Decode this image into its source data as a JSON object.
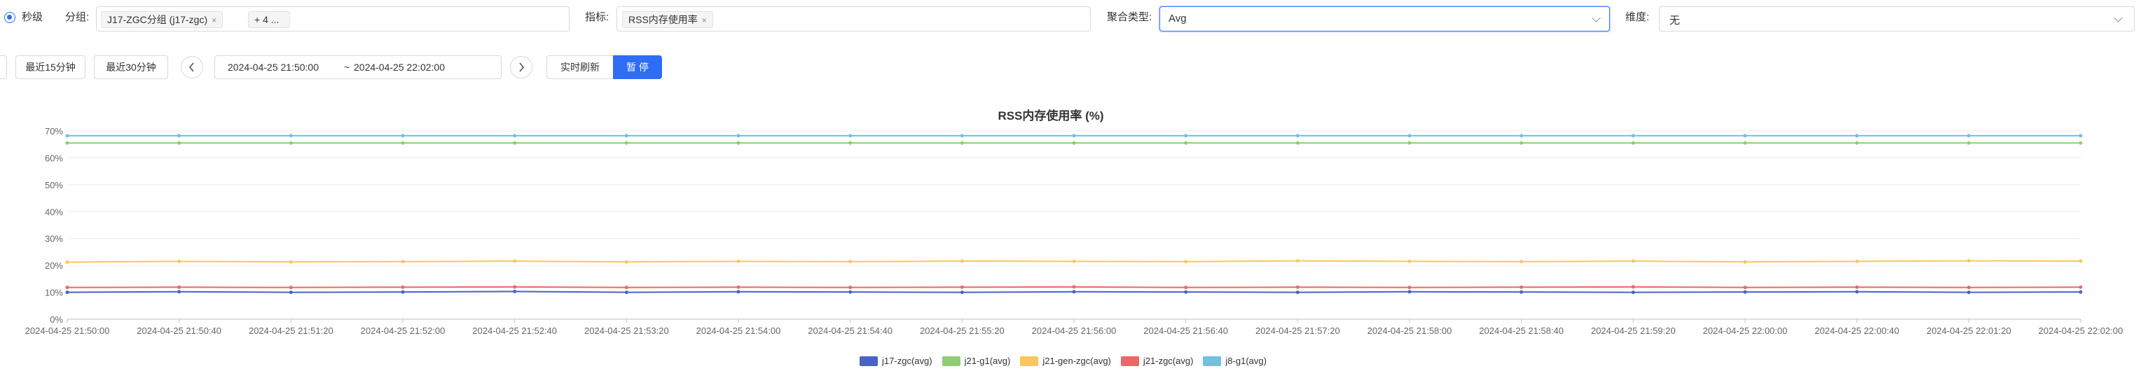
{
  "toolbar": {
    "granularity_label": "秒级",
    "group_label": "分组:",
    "group_tag": "J17-ZGC分组 (j17-zgc)",
    "group_more": "+ 4 ...",
    "metric_label": "指标:",
    "metric_tag": "RSS内存使用率",
    "agg_label": "聚合类型:",
    "agg_value": "Avg",
    "dim_label": "维度:",
    "dim_value": "无",
    "close_char": "×"
  },
  "timebar": {
    "quick_15": "最近15分钟",
    "quick_30": "最近30分钟",
    "range_start": "2024-04-25 21:50:00",
    "range_sep": "~",
    "range_end": "2024-04-25 22:02:00",
    "realtime_label": "实时刷新",
    "pause_label": "暂 停"
  },
  "colors": {
    "accent": "#2f6df6",
    "j17_zgc": "#4a64c4",
    "j21_g1": "#91cc75",
    "j21_gen_zgc": "#fac858",
    "j21_zgc": "#ee6666",
    "j8_g1": "#73c0de"
  },
  "chart_data": {
    "type": "line",
    "title": "RSS内存使用率 (%)",
    "ylim": [
      0,
      70
    ],
    "yticks": [
      "0%",
      "10%",
      "20%",
      "30%",
      "40%",
      "50%",
      "60%",
      "70%"
    ],
    "x": [
      "2024-04-25 21:50:00",
      "2024-04-25 21:50:40",
      "2024-04-25 21:51:20",
      "2024-04-25 21:52:00",
      "2024-04-25 21:52:40",
      "2024-04-25 21:53:20",
      "2024-04-25 21:54:00",
      "2024-04-25 21:54:40",
      "2024-04-25 21:55:20",
      "2024-04-25 21:56:00",
      "2024-04-25 21:56:40",
      "2024-04-25 21:57:20",
      "2024-04-25 21:58:00",
      "2024-04-25 21:58:40",
      "2024-04-25 21:59:20",
      "2024-04-25 22:00:00",
      "2024-04-25 22:00:40",
      "2024-04-25 22:01:20",
      "2024-04-25 22:02:00"
    ],
    "grid": true,
    "legend_position": "bottom-center",
    "series": [
      {
        "name": "j17-zgc(avg)",
        "color": "#4a64c4",
        "values": [
          10.0,
          10.2,
          10.0,
          10.1,
          10.3,
          10.0,
          10.2,
          10.1,
          10.0,
          10.2,
          10.1,
          10.0,
          10.2,
          10.1,
          10.0,
          10.1,
          10.2,
          10.0,
          10.1
        ]
      },
      {
        "name": "j21-g1(avg)",
        "color": "#91cc75",
        "values": [
          65.5,
          65.5,
          65.5,
          65.5,
          65.5,
          65.5,
          65.5,
          65.5,
          65.5,
          65.5,
          65.5,
          65.5,
          65.5,
          65.5,
          65.5,
          65.5,
          65.5,
          65.5,
          65.5
        ]
      },
      {
        "name": "j21-gen-zgc(avg)",
        "color": "#fac858",
        "values": [
          21.2,
          21.5,
          21.3,
          21.4,
          21.6,
          21.3,
          21.5,
          21.4,
          21.6,
          21.5,
          21.4,
          21.7,
          21.5,
          21.4,
          21.6,
          21.3,
          21.5,
          21.7,
          21.6
        ]
      },
      {
        "name": "j21-zgc(avg)",
        "color": "#ee6666",
        "values": [
          11.8,
          11.9,
          11.8,
          11.9,
          12.0,
          11.8,
          11.9,
          11.8,
          11.9,
          12.0,
          11.8,
          11.9,
          11.8,
          11.9,
          12.0,
          11.8,
          11.9,
          11.8,
          11.9
        ]
      },
      {
        "name": "j8-g1(avg)",
        "color": "#73c0de",
        "values": [
          68.2,
          68.2,
          68.2,
          68.2,
          68.2,
          68.2,
          68.2,
          68.2,
          68.2,
          68.2,
          68.2,
          68.2,
          68.2,
          68.2,
          68.2,
          68.2,
          68.2,
          68.2,
          68.2
        ]
      }
    ]
  }
}
